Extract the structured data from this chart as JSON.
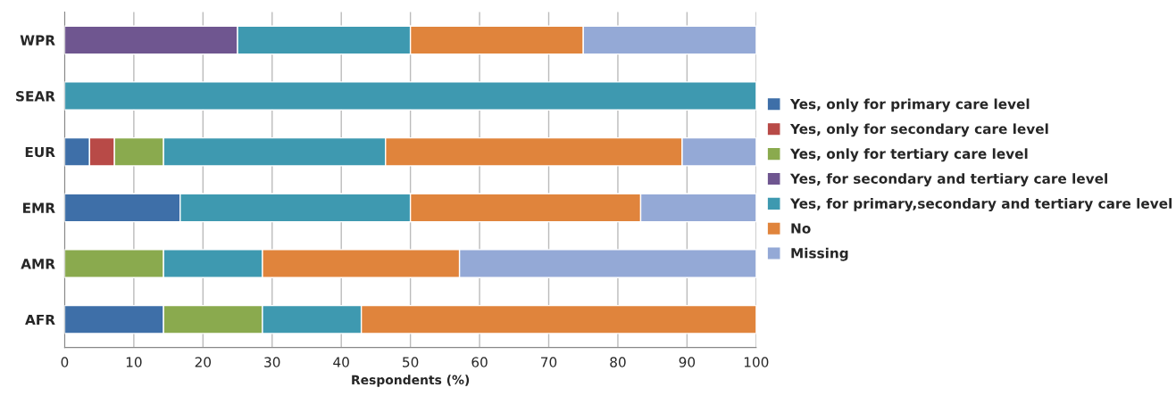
{
  "chart_data": {
    "type": "bar",
    "orientation": "horizontal",
    "stacked": true,
    "categories": [
      "WPR",
      "SEAR",
      "EUR",
      "EMR",
      "AMR",
      "AFR"
    ],
    "series": [
      {
        "name": "Yes, only for primary care level",
        "color": "#3e6fa8",
        "values": [
          null,
          null,
          3.6,
          16.7,
          null,
          14.3
        ]
      },
      {
        "name": "Yes, only for secondary care level",
        "color": "#b84a47",
        "values": [
          null,
          null,
          3.6,
          null,
          null,
          null
        ]
      },
      {
        "name": "Yes, only for tertiary care level",
        "color": "#8aaa4e",
        "values": [
          null,
          null,
          7.1,
          null,
          14.3,
          14.3
        ]
      },
      {
        "name": "Yes, for secondary and tertiary care level",
        "color": "#6f5690",
        "values": [
          25,
          null,
          null,
          null,
          null,
          null
        ]
      },
      {
        "name": "Yes, for primary,secondary and tertiary care level",
        "color": "#3e99b0",
        "values": [
          25,
          100,
          32.1,
          33.3,
          14.3,
          14.3
        ]
      },
      {
        "name": "No",
        "color": "#e0843c",
        "values": [
          25,
          null,
          42.9,
          33.3,
          28.5,
          57.1
        ]
      },
      {
        "name": "Missing",
        "color": "#94a9d6",
        "values": [
          25,
          null,
          10.7,
          16.7,
          42.9,
          null
        ]
      }
    ],
    "xlabel": "Respondents (%)",
    "xlim": [
      0,
      100
    ],
    "xticks": [
      0,
      10,
      20,
      30,
      40,
      50,
      60,
      70,
      80,
      90,
      100
    ],
    "grid": "x",
    "legend": "right"
  }
}
